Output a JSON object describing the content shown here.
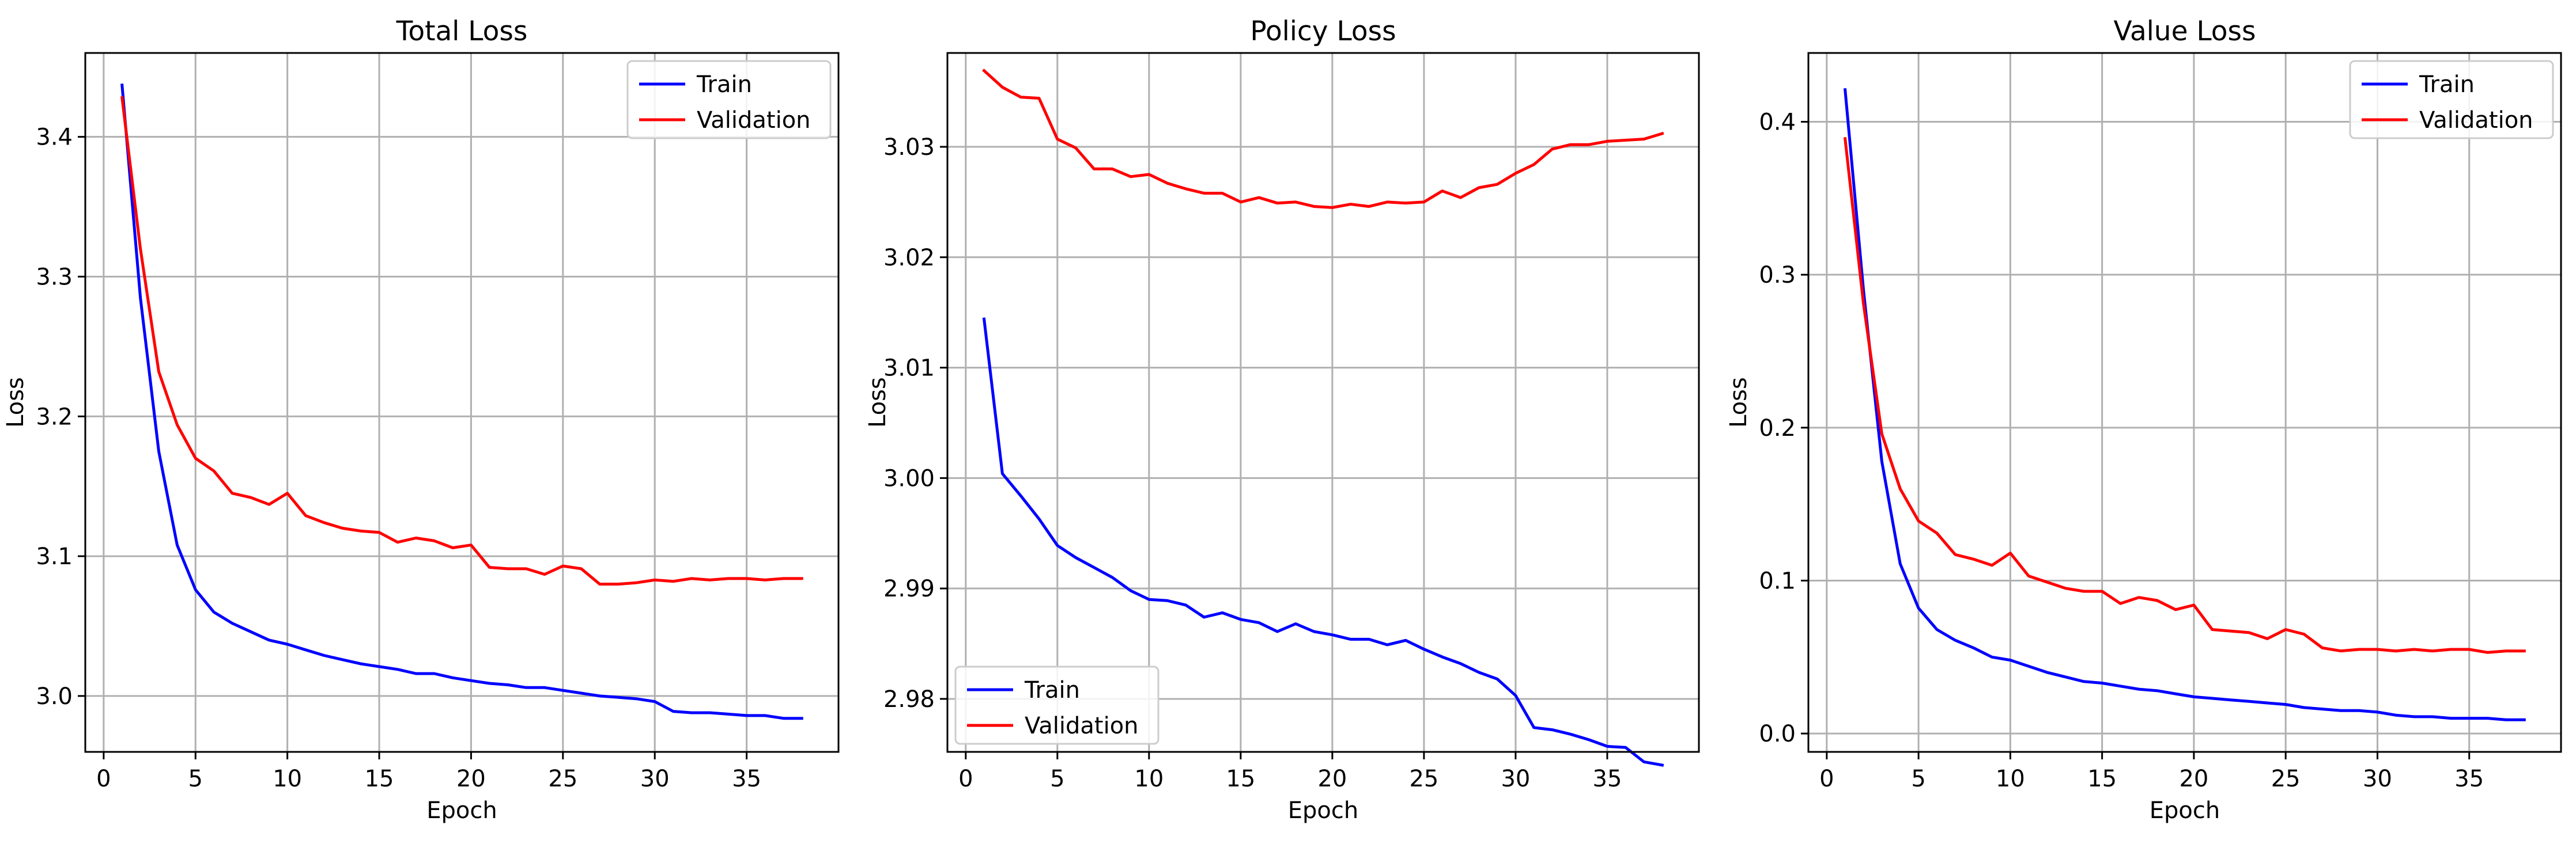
{
  "colors": {
    "train": "#0000ff",
    "validation": "#ff0000",
    "grid": "#b0b0b0",
    "axes": "#000000"
  },
  "chart_data": [
    {
      "type": "line",
      "title": "Total Loss",
      "xlabel": "Epoch",
      "ylabel": "Loss",
      "xlim": [
        -1,
        40
      ],
      "ylim": [
        2.96,
        3.46
      ],
      "xticks": [
        0,
        5,
        10,
        15,
        20,
        25,
        30,
        35
      ],
      "yticks": [
        3.0,
        3.1,
        3.2,
        3.3,
        3.4
      ],
      "ytick_decimals": 1,
      "grid": true,
      "legend_position": "upper right",
      "x": [
        1,
        2,
        3,
        4,
        5,
        6,
        7,
        8,
        9,
        10,
        11,
        12,
        13,
        14,
        15,
        16,
        17,
        18,
        19,
        20,
        21,
        22,
        23,
        24,
        25,
        26,
        27,
        28,
        29,
        30,
        31,
        32,
        33,
        34,
        35,
        36,
        37,
        38
      ],
      "series": [
        {
          "name": "Train",
          "color": "#0000ff",
          "values": [
            3.437,
            3.285,
            3.175,
            3.108,
            3.076,
            3.06,
            3.052,
            3.046,
            3.04,
            3.037,
            3.033,
            3.029,
            3.026,
            3.023,
            3.021,
            3.019,
            3.016,
            3.016,
            3.013,
            3.011,
            3.009,
            3.008,
            3.006,
            3.006,
            3.004,
            3.002,
            3.0,
            2.999,
            2.998,
            2.996,
            2.989,
            2.988,
            2.988,
            2.987,
            2.986,
            2.986,
            2.984,
            2.984
          ]
        },
        {
          "name": "Validation",
          "color": "#ff0000",
          "values": [
            3.428,
            3.32,
            3.232,
            3.194,
            3.17,
            3.161,
            3.145,
            3.142,
            3.137,
            3.145,
            3.129,
            3.124,
            3.12,
            3.118,
            3.117,
            3.11,
            3.113,
            3.111,
            3.106,
            3.108,
            3.092,
            3.091,
            3.091,
            3.087,
            3.093,
            3.091,
            3.08,
            3.08,
            3.081,
            3.083,
            3.082,
            3.084,
            3.083,
            3.084,
            3.084,
            3.083,
            3.084,
            3.084
          ]
        }
      ]
    },
    {
      "type": "line",
      "title": "Policy Loss",
      "xlabel": "Epoch",
      "ylabel": "Loss",
      "xlim": [
        -1,
        40
      ],
      "ylim": [
        2.9752,
        3.0385
      ],
      "xticks": [
        0,
        5,
        10,
        15,
        20,
        25,
        30,
        35
      ],
      "yticks": [
        2.98,
        2.99,
        3.0,
        3.01,
        3.02,
        3.03
      ],
      "ytick_decimals": 2,
      "grid": true,
      "legend_position": "lower left",
      "x": [
        1,
        2,
        3,
        4,
        5,
        6,
        7,
        8,
        9,
        10,
        11,
        12,
        13,
        14,
        15,
        16,
        17,
        18,
        19,
        20,
        21,
        22,
        23,
        24,
        25,
        26,
        27,
        28,
        29,
        30,
        31,
        32,
        33,
        34,
        35,
        36,
        37,
        38
      ],
      "series": [
        {
          "name": "Train",
          "color": "#0000ff",
          "values": [
            3.0144,
            3.0004,
            2.9984,
            2.9963,
            2.9939,
            2.9928,
            2.9919,
            2.991,
            2.9898,
            2.989,
            2.9889,
            2.9885,
            2.9874,
            2.9878,
            2.9872,
            2.9869,
            2.9861,
            2.9868,
            2.9861,
            2.9858,
            2.9854,
            2.9854,
            2.9849,
            2.9853,
            2.9845,
            2.9838,
            2.9832,
            2.9824,
            2.9818,
            2.9803,
            2.9774,
            2.9772,
            2.9768,
            2.9763,
            2.9757,
            2.9756,
            2.9743,
            2.974
          ]
        },
        {
          "name": "Validation",
          "color": "#ff0000",
          "values": [
            3.0369,
            3.0354,
            3.0345,
            3.0344,
            3.0307,
            3.0299,
            3.028,
            3.028,
            3.0273,
            3.0275,
            3.0267,
            3.0262,
            3.0258,
            3.0258,
            3.025,
            3.0254,
            3.0249,
            3.025,
            3.0246,
            3.0245,
            3.0248,
            3.0246,
            3.025,
            3.0249,
            3.025,
            3.026,
            3.0254,
            3.0263,
            3.0266,
            3.0276,
            3.0284,
            3.0298,
            3.0302,
            3.0302,
            3.0305,
            3.0306,
            3.0307,
            3.0312
          ]
        }
      ]
    },
    {
      "type": "line",
      "title": "Value Loss",
      "xlabel": "Epoch",
      "ylabel": "Loss",
      "xlim": [
        -1,
        40
      ],
      "ylim": [
        -0.012,
        0.445
      ],
      "xticks": [
        0,
        5,
        10,
        15,
        20,
        25,
        30,
        35
      ],
      "yticks": [
        0.0,
        0.1,
        0.2,
        0.3,
        0.4
      ],
      "ytick_decimals": 1,
      "grid": true,
      "legend_position": "upper right",
      "x": [
        1,
        2,
        3,
        4,
        5,
        6,
        7,
        8,
        9,
        10,
        11,
        12,
        13,
        14,
        15,
        16,
        17,
        18,
        19,
        20,
        21,
        22,
        23,
        24,
        25,
        26,
        27,
        28,
        29,
        30,
        31,
        32,
        33,
        34,
        35,
        36,
        37,
        38
      ],
      "series": [
        {
          "name": "Train",
          "color": "#0000ff",
          "values": [
            0.421,
            0.29,
            0.178,
            0.111,
            0.082,
            0.068,
            0.061,
            0.056,
            0.05,
            0.048,
            0.044,
            0.04,
            0.037,
            0.034,
            0.033,
            0.031,
            0.029,
            0.028,
            0.026,
            0.024,
            0.023,
            0.022,
            0.021,
            0.02,
            0.019,
            0.017,
            0.016,
            0.015,
            0.015,
            0.014,
            0.012,
            0.011,
            0.011,
            0.01,
            0.01,
            0.01,
            0.009,
            0.009
          ]
        },
        {
          "name": "Validation",
          "color": "#ff0000",
          "values": [
            0.389,
            0.281,
            0.196,
            0.16,
            0.139,
            0.131,
            0.117,
            0.114,
            0.11,
            0.118,
            0.103,
            0.099,
            0.095,
            0.093,
            0.093,
            0.085,
            0.089,
            0.087,
            0.081,
            0.084,
            0.068,
            0.067,
            0.066,
            0.062,
            0.068,
            0.065,
            0.056,
            0.054,
            0.055,
            0.055,
            0.054,
            0.055,
            0.054,
            0.055,
            0.055,
            0.053,
            0.054,
            0.054
          ]
        }
      ]
    }
  ]
}
